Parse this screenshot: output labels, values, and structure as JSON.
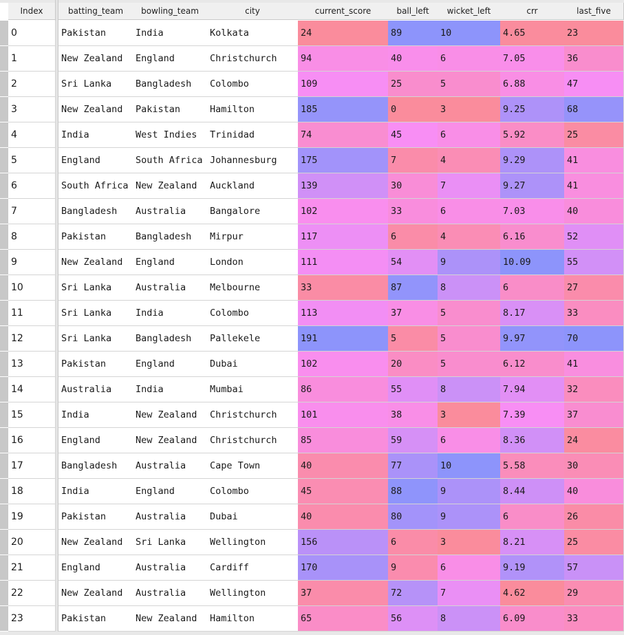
{
  "columns": [
    "Index",
    "batting_team",
    "bowling_team",
    "city",
    "current_score",
    "ball_left",
    "wicket_left",
    "crr",
    "last_five"
  ],
  "rows": [
    {
      "index": "0",
      "batting_team": "Pakistan",
      "bowling_team": "India",
      "city": "Kolkata",
      "current_score": "24",
      "ball_left": "89",
      "wicket_left": "10",
      "crr": "4.65",
      "last_five": "23"
    },
    {
      "index": "1",
      "batting_team": "New Zealand",
      "bowling_team": "England",
      "city": "Christchurch",
      "current_score": "94",
      "ball_left": "40",
      "wicket_left": "6",
      "crr": "7.05",
      "last_five": "36"
    },
    {
      "index": "2",
      "batting_team": "Sri Lanka",
      "bowling_team": "Bangladesh",
      "city": "Colombo",
      "current_score": "109",
      "ball_left": "25",
      "wicket_left": "5",
      "crr": "6.88",
      "last_five": "47"
    },
    {
      "index": "3",
      "batting_team": "New Zealand",
      "bowling_team": "Pakistan",
      "city": "Hamilton",
      "current_score": "185",
      "ball_left": "0",
      "wicket_left": "3",
      "crr": "9.25",
      "last_five": "68"
    },
    {
      "index": "4",
      "batting_team": "India",
      "bowling_team": "West Indies",
      "city": "Trinidad",
      "current_score": "74",
      "ball_left": "45",
      "wicket_left": "6",
      "crr": "5.92",
      "last_five": "25"
    },
    {
      "index": "5",
      "batting_team": "England",
      "bowling_team": "South Africa",
      "city": "Johannesburg",
      "current_score": "175",
      "ball_left": "7",
      "wicket_left": "4",
      "crr": "9.29",
      "last_five": "41"
    },
    {
      "index": "6",
      "batting_team": "South Africa",
      "bowling_team": "New Zealand",
      "city": "Auckland",
      "current_score": "139",
      "ball_left": "30",
      "wicket_left": "7",
      "crr": "9.27",
      "last_five": "41"
    },
    {
      "index": "7",
      "batting_team": "Bangladesh",
      "bowling_team": "Australia",
      "city": "Bangalore",
      "current_score": "102",
      "ball_left": "33",
      "wicket_left": "6",
      "crr": "7.03",
      "last_five": "40"
    },
    {
      "index": "8",
      "batting_team": "Pakistan",
      "bowling_team": "Bangladesh",
      "city": "Mirpur",
      "current_score": "117",
      "ball_left": "6",
      "wicket_left": "4",
      "crr": "6.16",
      "last_five": "52"
    },
    {
      "index": "9",
      "batting_team": "New Zealand",
      "bowling_team": "England",
      "city": "London",
      "current_score": "111",
      "ball_left": "54",
      "wicket_left": "9",
      "crr": "10.09",
      "last_five": "55"
    },
    {
      "index": "10",
      "batting_team": "Sri Lanka",
      "bowling_team": "Australia",
      "city": "Melbourne",
      "current_score": "33",
      "ball_left": "87",
      "wicket_left": "8",
      "crr": "6",
      "last_five": "27"
    },
    {
      "index": "11",
      "batting_team": "Sri Lanka",
      "bowling_team": "India",
      "city": "Colombo",
      "current_score": "113",
      "ball_left": "37",
      "wicket_left": "5",
      "crr": "8.17",
      "last_five": "33"
    },
    {
      "index": "12",
      "batting_team": "Sri Lanka",
      "bowling_team": "Bangladesh",
      "city": "Pallekele",
      "current_score": "191",
      "ball_left": "5",
      "wicket_left": "5",
      "crr": "9.97",
      "last_five": "70"
    },
    {
      "index": "13",
      "batting_team": "Pakistan",
      "bowling_team": "England",
      "city": "Dubai",
      "current_score": "102",
      "ball_left": "20",
      "wicket_left": "5",
      "crr": "6.12",
      "last_five": "41"
    },
    {
      "index": "14",
      "batting_team": "Australia",
      "bowling_team": "India",
      "city": "Mumbai",
      "current_score": "86",
      "ball_left": "55",
      "wicket_left": "8",
      "crr": "7.94",
      "last_five": "32"
    },
    {
      "index": "15",
      "batting_team": "India",
      "bowling_team": "New Zealand",
      "city": "Christchurch",
      "current_score": "101",
      "ball_left": "38",
      "wicket_left": "3",
      "crr": "7.39",
      "last_five": "37"
    },
    {
      "index": "16",
      "batting_team": "England",
      "bowling_team": "New Zealand",
      "city": "Christchurch",
      "current_score": "85",
      "ball_left": "59",
      "wicket_left": "6",
      "crr": "8.36",
      "last_five": "24"
    },
    {
      "index": "17",
      "batting_team": "Bangladesh",
      "bowling_team": "Australia",
      "city": "Cape Town",
      "current_score": "40",
      "ball_left": "77",
      "wicket_left": "10",
      "crr": "5.58",
      "last_five": "30"
    },
    {
      "index": "18",
      "batting_team": "India",
      "bowling_team": "England",
      "city": "Colombo",
      "current_score": "45",
      "ball_left": "88",
      "wicket_left": "9",
      "crr": "8.44",
      "last_five": "40"
    },
    {
      "index": "19",
      "batting_team": "Pakistan",
      "bowling_team": "Australia",
      "city": "Dubai",
      "current_score": "40",
      "ball_left": "80",
      "wicket_left": "9",
      "crr": "6",
      "last_five": "26"
    },
    {
      "index": "20",
      "batting_team": "New Zealand",
      "bowling_team": "Sri Lanka",
      "city": "Wellington",
      "current_score": "156",
      "ball_left": "6",
      "wicket_left": "3",
      "crr": "8.21",
      "last_five": "25"
    },
    {
      "index": "21",
      "batting_team": "England",
      "bowling_team": "Australia",
      "city": "Cardiff",
      "current_score": "170",
      "ball_left": "9",
      "wicket_left": "6",
      "crr": "9.19",
      "last_five": "57"
    },
    {
      "index": "22",
      "batting_team": "New Zealand",
      "bowling_team": "Australia",
      "city": "Wellington",
      "current_score": "37",
      "ball_left": "72",
      "wicket_left": "7",
      "crr": "4.62",
      "last_five": "29"
    },
    {
      "index": "23",
      "batting_team": "Pakistan",
      "bowling_team": "New Zealand",
      "city": "Hamilton",
      "current_score": "65",
      "ball_left": "56",
      "wicket_left": "8",
      "crr": "6.09",
      "last_five": "33"
    }
  ],
  "colormap": {
    "low": "#fa8c9c",
    "mid": "#f98ef4",
    "high": "#8d94fb"
  }
}
